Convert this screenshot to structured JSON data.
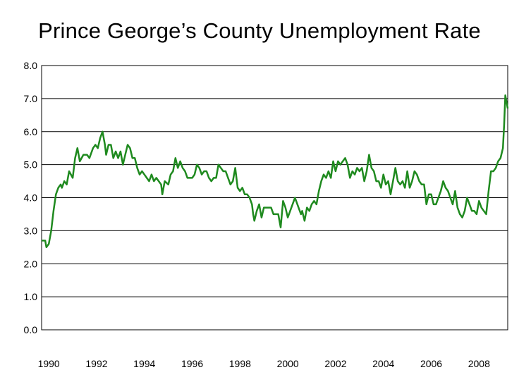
{
  "chart_data": {
    "type": "line",
    "title": "Prince George’s County Unemployment Rate",
    "xlabel": "",
    "ylabel": "",
    "xlim": [
      1989.7,
      2009.2
    ],
    "ylim": [
      0,
      8
    ],
    "y_ticks": [
      "0.0",
      "1.0",
      "2.0",
      "3.0",
      "4.0",
      "5.0",
      "6.0",
      "7.0",
      "8.0"
    ],
    "x_ticks": [
      "1990",
      "1992",
      "1994",
      "1996",
      "1998",
      "2000",
      "2002",
      "2004",
      "2006",
      "2008"
    ],
    "grid": "horizontal",
    "series": [
      {
        "color": "#1f8a1f",
        "points": [
          [
            1989.7,
            2.7
          ],
          [
            1989.85,
            2.7
          ],
          [
            1989.9,
            2.5
          ],
          [
            1990.0,
            2.6
          ],
          [
            1990.1,
            3.0
          ],
          [
            1990.2,
            3.6
          ],
          [
            1990.3,
            4.1
          ],
          [
            1990.4,
            4.3
          ],
          [
            1990.5,
            4.4
          ],
          [
            1990.55,
            4.3
          ],
          [
            1990.65,
            4.5
          ],
          [
            1990.75,
            4.4
          ],
          [
            1990.85,
            4.8
          ],
          [
            1991.0,
            4.6
          ],
          [
            1991.1,
            5.2
          ],
          [
            1991.2,
            5.5
          ],
          [
            1991.3,
            5.1
          ],
          [
            1991.45,
            5.3
          ],
          [
            1991.6,
            5.3
          ],
          [
            1991.7,
            5.2
          ],
          [
            1991.85,
            5.5
          ],
          [
            1991.95,
            5.6
          ],
          [
            1992.05,
            5.5
          ],
          [
            1992.15,
            5.8
          ],
          [
            1992.25,
            6.0
          ],
          [
            1992.35,
            5.6
          ],
          [
            1992.4,
            5.3
          ],
          [
            1992.5,
            5.6
          ],
          [
            1992.6,
            5.6
          ],
          [
            1992.7,
            5.2
          ],
          [
            1992.8,
            5.4
          ],
          [
            1992.9,
            5.2
          ],
          [
            1993.0,
            5.4
          ],
          [
            1993.1,
            5.0
          ],
          [
            1993.2,
            5.3
          ],
          [
            1993.3,
            5.6
          ],
          [
            1993.4,
            5.5
          ],
          [
            1993.5,
            5.2
          ],
          [
            1993.6,
            5.2
          ],
          [
            1993.7,
            4.9
          ],
          [
            1993.8,
            4.7
          ],
          [
            1993.9,
            4.8
          ],
          [
            1994.0,
            4.7
          ],
          [
            1994.1,
            4.6
          ],
          [
            1994.2,
            4.5
          ],
          [
            1994.3,
            4.7
          ],
          [
            1994.4,
            4.5
          ],
          [
            1994.5,
            4.6
          ],
          [
            1994.6,
            4.5
          ],
          [
            1994.7,
            4.4
          ],
          [
            1994.75,
            4.1
          ],
          [
            1994.85,
            4.5
          ],
          [
            1995.0,
            4.4
          ],
          [
            1995.1,
            4.7
          ],
          [
            1995.2,
            4.8
          ],
          [
            1995.3,
            5.2
          ],
          [
            1995.4,
            4.9
          ],
          [
            1995.5,
            5.1
          ],
          [
            1995.6,
            4.9
          ],
          [
            1995.7,
            4.8
          ],
          [
            1995.8,
            4.6
          ],
          [
            1995.9,
            4.6
          ],
          [
            1996.0,
            4.6
          ],
          [
            1996.1,
            4.7
          ],
          [
            1996.2,
            5.0
          ],
          [
            1996.3,
            4.9
          ],
          [
            1996.4,
            4.7
          ],
          [
            1996.5,
            4.8
          ],
          [
            1996.6,
            4.8
          ],
          [
            1996.7,
            4.6
          ],
          [
            1996.8,
            4.5
          ],
          [
            1996.9,
            4.6
          ],
          [
            1997.0,
            4.6
          ],
          [
            1997.1,
            5.0
          ],
          [
            1997.2,
            4.9
          ],
          [
            1997.3,
            4.8
          ],
          [
            1997.4,
            4.8
          ],
          [
            1997.5,
            4.6
          ],
          [
            1997.6,
            4.4
          ],
          [
            1997.7,
            4.5
          ],
          [
            1997.8,
            4.9
          ],
          [
            1997.9,
            4.3
          ],
          [
            1998.0,
            4.2
          ],
          [
            1998.1,
            4.3
          ],
          [
            1998.2,
            4.1
          ],
          [
            1998.3,
            4.1
          ],
          [
            1998.4,
            4.0
          ],
          [
            1998.5,
            3.8
          ],
          [
            1998.55,
            3.5
          ],
          [
            1998.6,
            3.3
          ],
          [
            1998.7,
            3.6
          ],
          [
            1998.8,
            3.8
          ],
          [
            1998.9,
            3.4
          ],
          [
            1999.0,
            3.7
          ],
          [
            1999.1,
            3.7
          ],
          [
            1999.2,
            3.7
          ],
          [
            1999.3,
            3.7
          ],
          [
            1999.4,
            3.5
          ],
          [
            1999.5,
            3.5
          ],
          [
            1999.6,
            3.5
          ],
          [
            1999.65,
            3.3
          ],
          [
            1999.7,
            3.1
          ],
          [
            1999.8,
            3.9
          ],
          [
            1999.9,
            3.7
          ],
          [
            2000.0,
            3.4
          ],
          [
            2000.1,
            3.6
          ],
          [
            2000.2,
            3.8
          ],
          [
            2000.3,
            4.0
          ],
          [
            2000.4,
            3.8
          ],
          [
            2000.5,
            3.6
          ],
          [
            2000.55,
            3.5
          ],
          [
            2000.6,
            3.6
          ],
          [
            2000.7,
            3.3
          ],
          [
            2000.8,
            3.7
          ],
          [
            2000.9,
            3.6
          ],
          [
            2001.0,
            3.8
          ],
          [
            2001.1,
            3.9
          ],
          [
            2001.2,
            3.8
          ],
          [
            2001.3,
            4.2
          ],
          [
            2001.4,
            4.5
          ],
          [
            2001.5,
            4.7
          ],
          [
            2001.6,
            4.6
          ],
          [
            2001.7,
            4.8
          ],
          [
            2001.8,
            4.6
          ],
          [
            2001.9,
            5.1
          ],
          [
            2002.0,
            4.8
          ],
          [
            2002.1,
            5.1
          ],
          [
            2002.2,
            5.0
          ],
          [
            2002.3,
            5.1
          ],
          [
            2002.4,
            5.2
          ],
          [
            2002.5,
            5.0
          ],
          [
            2002.6,
            4.6
          ],
          [
            2002.7,
            4.8
          ],
          [
            2002.8,
            4.7
          ],
          [
            2002.9,
            4.9
          ],
          [
            2003.0,
            4.8
          ],
          [
            2003.1,
            4.9
          ],
          [
            2003.2,
            4.5
          ],
          [
            2003.3,
            4.8
          ],
          [
            2003.4,
            5.3
          ],
          [
            2003.5,
            4.9
          ],
          [
            2003.6,
            4.8
          ],
          [
            2003.7,
            4.5
          ],
          [
            2003.8,
            4.5
          ],
          [
            2003.9,
            4.3
          ],
          [
            2004.0,
            4.7
          ],
          [
            2004.1,
            4.4
          ],
          [
            2004.2,
            4.5
          ],
          [
            2004.3,
            4.1
          ],
          [
            2004.4,
            4.5
          ],
          [
            2004.5,
            4.9
          ],
          [
            2004.6,
            4.5
          ],
          [
            2004.7,
            4.4
          ],
          [
            2004.8,
            4.5
          ],
          [
            2004.9,
            4.3
          ],
          [
            2005.0,
            4.8
          ],
          [
            2005.1,
            4.3
          ],
          [
            2005.2,
            4.5
          ],
          [
            2005.3,
            4.8
          ],
          [
            2005.4,
            4.7
          ],
          [
            2005.5,
            4.5
          ],
          [
            2005.6,
            4.4
          ],
          [
            2005.7,
            4.4
          ],
          [
            2005.8,
            3.8
          ],
          [
            2005.9,
            4.1
          ],
          [
            2006.0,
            4.1
          ],
          [
            2006.1,
            3.8
          ],
          [
            2006.2,
            3.8
          ],
          [
            2006.3,
            4.0
          ],
          [
            2006.4,
            4.2
          ],
          [
            2006.5,
            4.5
          ],
          [
            2006.6,
            4.3
          ],
          [
            2006.7,
            4.2
          ],
          [
            2006.8,
            4.0
          ],
          [
            2006.9,
            3.8
          ],
          [
            2007.0,
            4.2
          ],
          [
            2007.1,
            3.7
          ],
          [
            2007.2,
            3.5
          ],
          [
            2007.3,
            3.4
          ],
          [
            2007.4,
            3.6
          ],
          [
            2007.5,
            4.0
          ],
          [
            2007.6,
            3.8
          ],
          [
            2007.7,
            3.6
          ],
          [
            2007.8,
            3.6
          ],
          [
            2007.9,
            3.5
          ],
          [
            2008.0,
            3.9
          ],
          [
            2008.1,
            3.7
          ],
          [
            2008.2,
            3.6
          ],
          [
            2008.3,
            3.5
          ],
          [
            2008.4,
            4.2
          ],
          [
            2008.5,
            4.8
          ],
          [
            2008.6,
            4.8
          ],
          [
            2008.7,
            4.9
          ],
          [
            2008.8,
            5.1
          ],
          [
            2008.9,
            5.2
          ],
          [
            2009.0,
            5.5
          ],
          [
            2009.05,
            6.2
          ],
          [
            2009.1,
            7.1
          ],
          [
            2009.15,
            6.9
          ],
          [
            2009.2,
            6.7
          ]
        ]
      }
    ]
  }
}
